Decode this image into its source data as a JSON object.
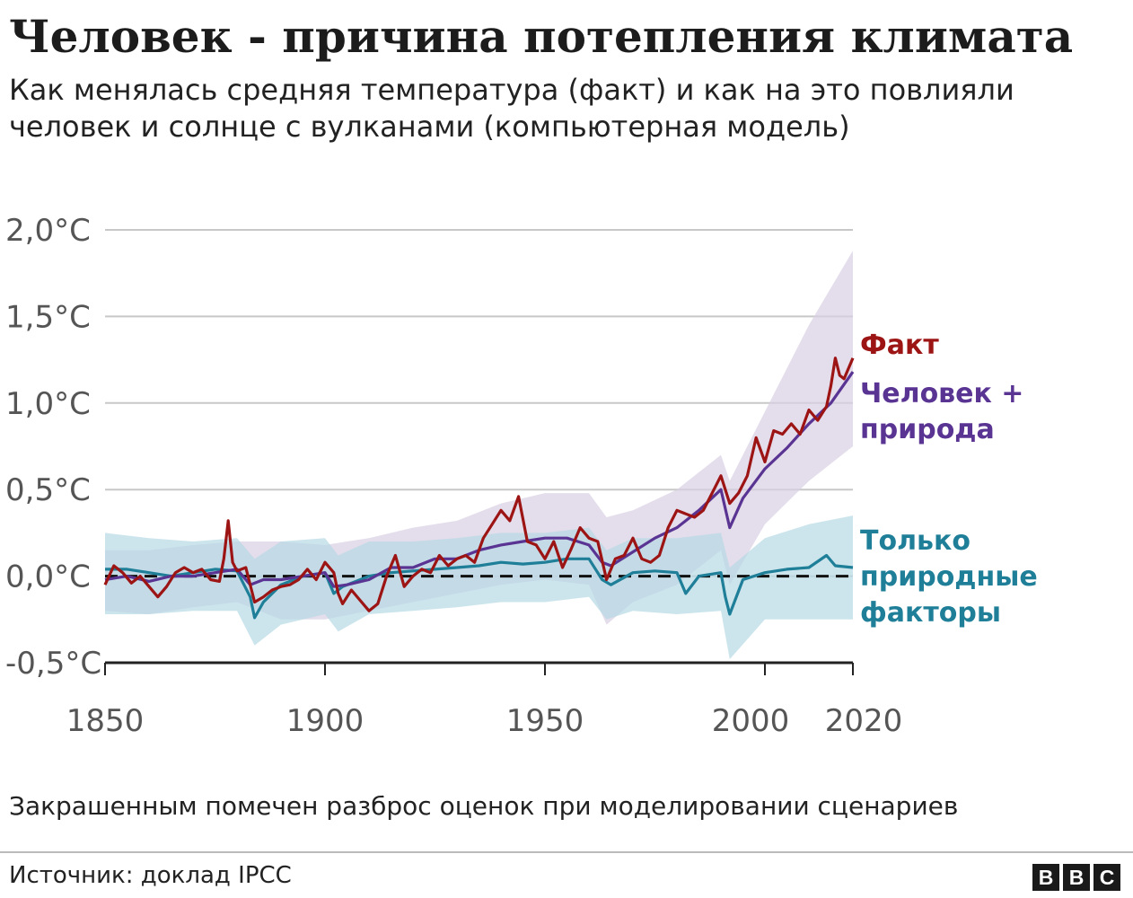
{
  "header": {
    "title": "Человек - причина потепления климата",
    "subtitle": "Как менялась средняя температура (факт) и как на это повлияли человек и солнце с вулканами (компьютерная модель)"
  },
  "footer": {
    "note": "Закрашенным помечен разброс оценок при моделировании сценариев",
    "source": "Источник: доклад IPCC",
    "logo": [
      "B",
      "B",
      "C"
    ]
  },
  "colors": {
    "fact": "#9c1414",
    "human": "#5a3493",
    "human_band": "#d9cfe3",
    "natural": "#1f7f98",
    "natural_band": "#b6dae5",
    "grid": "#c8c8c8",
    "axis": "#222222",
    "tick_text": "#555555"
  },
  "chart_data": {
    "type": "line",
    "title": "Человек - причина потепления климата",
    "xlim": [
      1850,
      2020
    ],
    "ylim": [
      -0.5,
      2.0
    ],
    "x_ticks": [
      1850,
      1900,
      1950,
      2000,
      2020
    ],
    "x_tick_labels": [
      "1850",
      "1900",
      "1950",
      "2000",
      "2020"
    ],
    "y_ticks": [
      -0.5,
      0,
      0.5,
      1.0,
      1.5,
      2.0
    ],
    "y_tick_labels": [
      "-0,5°C",
      "0,0°C",
      "0,5°C",
      "1,0°C",
      "1,5°C",
      "2,0°C"
    ],
    "grid": true,
    "baseline": 0,
    "legend_placement": "right, labels next to line ends",
    "series": [
      {
        "key": "fact",
        "name": "Факт",
        "points": [
          [
            1850,
            -0.05
          ],
          [
            1852,
            0.06
          ],
          [
            1854,
            0.02
          ],
          [
            1856,
            -0.04
          ],
          [
            1858,
            0.0
          ],
          [
            1860,
            -0.06
          ],
          [
            1862,
            -0.12
          ],
          [
            1864,
            -0.06
          ],
          [
            1866,
            0.02
          ],
          [
            1868,
            0.05
          ],
          [
            1870,
            0.02
          ],
          [
            1872,
            0.04
          ],
          [
            1874,
            -0.02
          ],
          [
            1876,
            -0.03
          ],
          [
            1877,
            0.1
          ],
          [
            1878,
            0.32
          ],
          [
            1879,
            0.08
          ],
          [
            1880,
            0.03
          ],
          [
            1882,
            0.05
          ],
          [
            1884,
            -0.15
          ],
          [
            1886,
            -0.12
          ],
          [
            1888,
            -0.08
          ],
          [
            1890,
            -0.06
          ],
          [
            1892,
            -0.05
          ],
          [
            1894,
            -0.02
          ],
          [
            1896,
            0.04
          ],
          [
            1898,
            -0.02
          ],
          [
            1900,
            0.08
          ],
          [
            1902,
            0.02
          ],
          [
            1903,
            -0.1
          ],
          [
            1904,
            -0.16
          ],
          [
            1906,
            -0.08
          ],
          [
            1908,
            -0.14
          ],
          [
            1910,
            -0.2
          ],
          [
            1912,
            -0.16
          ],
          [
            1914,
            0.0
          ],
          [
            1916,
            0.12
          ],
          [
            1918,
            -0.06
          ],
          [
            1920,
            0.0
          ],
          [
            1922,
            0.04
          ],
          [
            1924,
            0.02
          ],
          [
            1926,
            0.12
          ],
          [
            1928,
            0.06
          ],
          [
            1930,
            0.1
          ],
          [
            1932,
            0.12
          ],
          [
            1934,
            0.08
          ],
          [
            1936,
            0.22
          ],
          [
            1938,
            0.3
          ],
          [
            1940,
            0.38
          ],
          [
            1942,
            0.32
          ],
          [
            1944,
            0.46
          ],
          [
            1946,
            0.2
          ],
          [
            1948,
            0.18
          ],
          [
            1950,
            0.1
          ],
          [
            1952,
            0.2
          ],
          [
            1954,
            0.05
          ],
          [
            1956,
            0.16
          ],
          [
            1958,
            0.28
          ],
          [
            1960,
            0.22
          ],
          [
            1962,
            0.2
          ],
          [
            1964,
            -0.02
          ],
          [
            1966,
            0.1
          ],
          [
            1968,
            0.12
          ],
          [
            1970,
            0.22
          ],
          [
            1972,
            0.1
          ],
          [
            1974,
            0.08
          ],
          [
            1976,
            0.12
          ],
          [
            1978,
            0.28
          ],
          [
            1980,
            0.38
          ],
          [
            1982,
            0.36
          ],
          [
            1984,
            0.34
          ],
          [
            1986,
            0.38
          ],
          [
            1988,
            0.48
          ],
          [
            1990,
            0.58
          ],
          [
            1992,
            0.42
          ],
          [
            1994,
            0.48
          ],
          [
            1996,
            0.58
          ],
          [
            1998,
            0.8
          ],
          [
            2000,
            0.66
          ],
          [
            2002,
            0.84
          ],
          [
            2004,
            0.82
          ],
          [
            2006,
            0.88
          ],
          [
            2008,
            0.82
          ],
          [
            2010,
            0.96
          ],
          [
            2012,
            0.9
          ],
          [
            2014,
            0.98
          ],
          [
            2015,
            1.1
          ],
          [
            2016,
            1.26
          ],
          [
            2017,
            1.16
          ],
          [
            2018,
            1.14
          ],
          [
            2020,
            1.26
          ]
        ]
      },
      {
        "key": "human",
        "name": "Человек + природа",
        "points": [
          [
            1850,
            -0.02
          ],
          [
            1855,
            0.0
          ],
          [
            1860,
            -0.03
          ],
          [
            1865,
            0.0
          ],
          [
            1870,
            0.0
          ],
          [
            1875,
            0.02
          ],
          [
            1880,
            0.04
          ],
          [
            1883,
            -0.05
          ],
          [
            1886,
            -0.02
          ],
          [
            1890,
            -0.02
          ],
          [
            1895,
            0.0
          ],
          [
            1900,
            0.02
          ],
          [
            1902,
            -0.06
          ],
          [
            1905,
            -0.05
          ],
          [
            1910,
            -0.02
          ],
          [
            1915,
            0.05
          ],
          [
            1920,
            0.05
          ],
          [
            1925,
            0.1
          ],
          [
            1930,
            0.1
          ],
          [
            1935,
            0.15
          ],
          [
            1940,
            0.18
          ],
          [
            1945,
            0.2
          ],
          [
            1950,
            0.22
          ],
          [
            1955,
            0.22
          ],
          [
            1960,
            0.18
          ],
          [
            1963,
            0.08
          ],
          [
            1965,
            0.06
          ],
          [
            1970,
            0.14
          ],
          [
            1975,
            0.22
          ],
          [
            1980,
            0.28
          ],
          [
            1985,
            0.38
          ],
          [
            1990,
            0.5
          ],
          [
            1992,
            0.28
          ],
          [
            1995,
            0.45
          ],
          [
            2000,
            0.62
          ],
          [
            2005,
            0.74
          ],
          [
            2010,
            0.88
          ],
          [
            2015,
            1.0
          ],
          [
            2020,
            1.18
          ]
        ]
      },
      {
        "key": "natural",
        "name": "Только природные факторы",
        "points": [
          [
            1850,
            0.04
          ],
          [
            1855,
            0.04
          ],
          [
            1860,
            0.02
          ],
          [
            1865,
            0.0
          ],
          [
            1870,
            0.02
          ],
          [
            1875,
            0.04
          ],
          [
            1880,
            0.03
          ],
          [
            1883,
            -0.12
          ],
          [
            1884,
            -0.24
          ],
          [
            1886,
            -0.15
          ],
          [
            1890,
            -0.05
          ],
          [
            1895,
            0.0
          ],
          [
            1900,
            0.02
          ],
          [
            1902,
            -0.1
          ],
          [
            1904,
            -0.06
          ],
          [
            1910,
            0.0
          ],
          [
            1915,
            0.02
          ],
          [
            1920,
            0.03
          ],
          [
            1925,
            0.04
          ],
          [
            1930,
            0.05
          ],
          [
            1935,
            0.06
          ],
          [
            1940,
            0.08
          ],
          [
            1945,
            0.07
          ],
          [
            1950,
            0.08
          ],
          [
            1955,
            0.1
          ],
          [
            1960,
            0.1
          ],
          [
            1963,
            -0.02
          ],
          [
            1965,
            -0.05
          ],
          [
            1970,
            0.02
          ],
          [
            1975,
            0.03
          ],
          [
            1980,
            0.02
          ],
          [
            1982,
            -0.1
          ],
          [
            1985,
            0.0
          ],
          [
            1990,
            0.02
          ],
          [
            1991,
            -0.12
          ],
          [
            1992,
            -0.22
          ],
          [
            1995,
            -0.02
          ],
          [
            2000,
            0.02
          ],
          [
            2005,
            0.04
          ],
          [
            2010,
            0.05
          ],
          [
            2014,
            0.12
          ],
          [
            2016,
            0.06
          ],
          [
            2020,
            0.05
          ]
        ]
      }
    ],
    "bands": [
      {
        "key": "human_band",
        "x": [
          1850,
          1860,
          1870,
          1880,
          1890,
          1900,
          1910,
          1920,
          1930,
          1940,
          1950,
          1960,
          1964,
          1970,
          1980,
          1990,
          1992,
          2000,
          2010,
          2020
        ],
        "upper": [
          0.15,
          0.15,
          0.18,
          0.2,
          0.2,
          0.18,
          0.22,
          0.28,
          0.32,
          0.42,
          0.48,
          0.48,
          0.34,
          0.38,
          0.5,
          0.7,
          0.55,
          0.95,
          1.45,
          1.88
        ],
        "lower": [
          -0.2,
          -0.22,
          -0.18,
          -0.15,
          -0.25,
          -0.25,
          -0.2,
          -0.15,
          -0.1,
          -0.05,
          -0.02,
          -0.05,
          -0.28,
          -0.15,
          -0.05,
          0.15,
          -0.05,
          0.3,
          0.55,
          0.75
        ]
      },
      {
        "key": "natural_band",
        "x": [
          1850,
          1860,
          1870,
          1880,
          1884,
          1890,
          1900,
          1903,
          1910,
          1920,
          1930,
          1940,
          1950,
          1960,
          1964,
          1970,
          1980,
          1990,
          1992,
          2000,
          2010,
          2020
        ],
        "upper": [
          0.25,
          0.22,
          0.2,
          0.22,
          0.1,
          0.2,
          0.22,
          0.12,
          0.2,
          0.2,
          0.22,
          0.25,
          0.25,
          0.28,
          0.15,
          0.22,
          0.22,
          0.25,
          0.05,
          0.22,
          0.3,
          0.35
        ],
        "lower": [
          -0.22,
          -0.22,
          -0.2,
          -0.2,
          -0.4,
          -0.28,
          -0.22,
          -0.32,
          -0.22,
          -0.2,
          -0.18,
          -0.15,
          -0.15,
          -0.12,
          -0.25,
          -0.2,
          -0.22,
          -0.2,
          -0.48,
          -0.25,
          -0.25,
          -0.25
        ]
      }
    ],
    "labels": [
      {
        "series": "fact",
        "lines": [
          "Факт"
        ]
      },
      {
        "series": "human",
        "lines": [
          "Человек +",
          "природа"
        ]
      },
      {
        "series": "natural",
        "lines": [
          "Только",
          "природные",
          "факторы"
        ]
      }
    ]
  }
}
